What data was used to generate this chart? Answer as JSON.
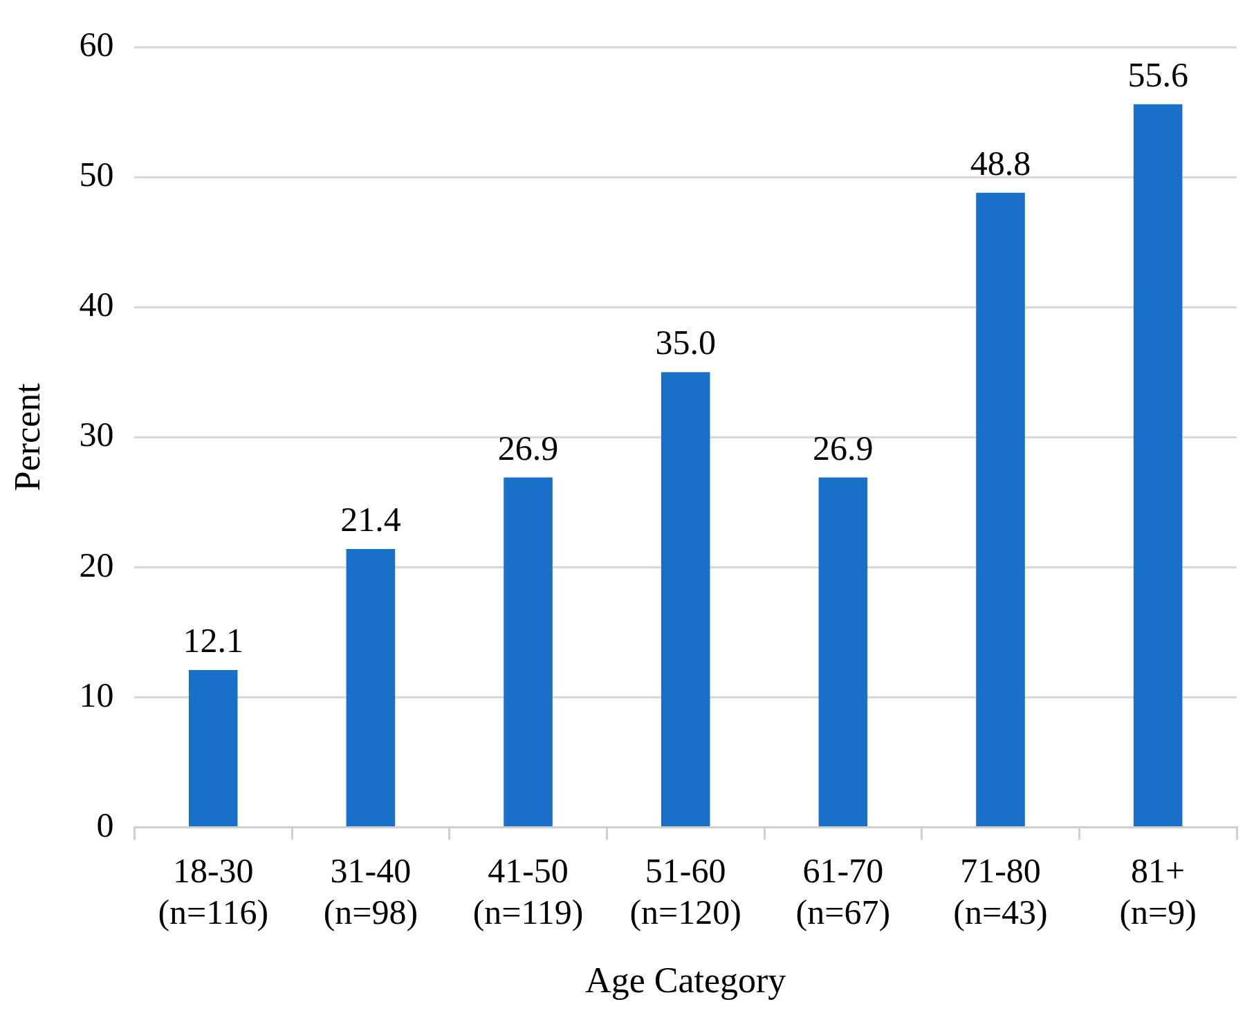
{
  "chart_data": {
    "type": "bar",
    "xlabel": "Age Category",
    "ylabel": "Percent",
    "categories": [
      "18-30\n(n=116)",
      "31-40\n(n=98)",
      "41-50\n(n=119)",
      "51-60\n(n=120)",
      "61-70\n(n=67)",
      "71-80\n(n=43)",
      "81+\n(n=9)"
    ],
    "values": [
      12.1,
      21.4,
      26.9,
      35.0,
      26.9,
      48.8,
      55.6
    ],
    "value_labels": [
      "12.1",
      "21.4",
      "26.9",
      "35.0",
      "26.9",
      "48.8",
      "55.6"
    ],
    "color": "#1870c8",
    "ylim": [
      0,
      60
    ],
    "yticks": [
      0,
      10,
      20,
      30,
      40,
      50,
      60
    ],
    "grid": "y",
    "legend": false
  }
}
